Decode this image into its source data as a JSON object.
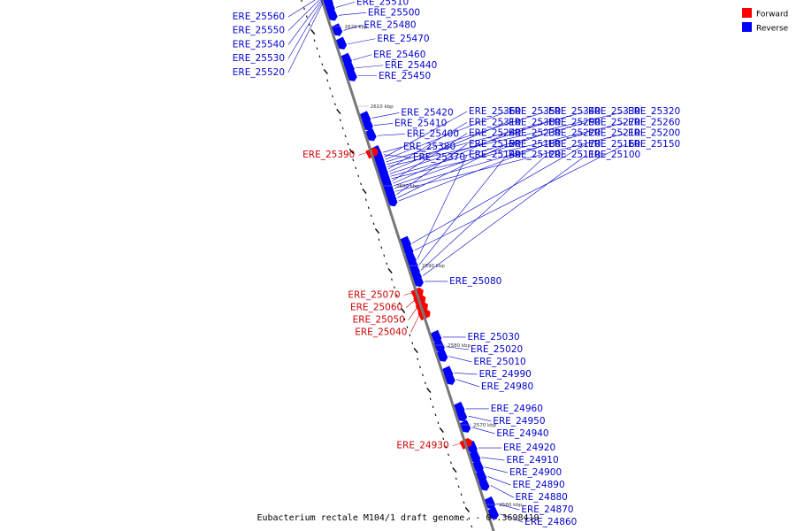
{
  "caption": "Eubacterium rectale M104/1 draft genome. - 0..3698419",
  "colors": {
    "forward": "#ff0000",
    "forward_label": "#cc0000",
    "reverse": "#0000ff",
    "reverse_label": "#0000cc",
    "backbone": "#777777",
    "background": "#ffffff"
  },
  "legend": [
    {
      "label": "Forward",
      "color": "#ff0000"
    },
    {
      "label": "Reverse",
      "color": "#0000ff"
    }
  ],
  "backbone_kbp_range": [
    2556,
    2624
  ],
  "kbp_markers": [
    {
      "label": "2620 kbp",
      "kbp": 2620
    },
    {
      "label": "2610 kbp",
      "kbp": 2610
    },
    {
      "label": "2600 kbp",
      "kbp": 2600
    },
    {
      "label": "2590 kbp",
      "kbp": 2590
    },
    {
      "label": "2580 kbp",
      "kbp": 2580
    },
    {
      "label": "2570 kbp",
      "kbp": 2570
    },
    {
      "label": "2560 kbp",
      "kbp": 2560
    }
  ],
  "genes": [
    {
      "name": "ERE_25560",
      "strand": "reverse",
      "kbp": 2623.6,
      "side": "left"
    },
    {
      "name": "ERE_25550",
      "strand": "reverse",
      "kbp": 2623.4,
      "side": "left"
    },
    {
      "name": "ERE_25540",
      "strand": "reverse",
      "kbp": 2623.2,
      "side": "left"
    },
    {
      "name": "ERE_25530",
      "strand": "reverse",
      "kbp": 2623.0,
      "side": "left"
    },
    {
      "name": "ERE_25520",
      "strand": "reverse",
      "kbp": 2622.8,
      "side": "left"
    },
    {
      "name": "ERE_25510",
      "strand": "reverse",
      "kbp": 2622.2,
      "side": "right"
    },
    {
      "name": "ERE_25500",
      "strand": "reverse",
      "kbp": 2621.2,
      "side": "right"
    },
    {
      "name": "ERE_25480",
      "strand": "reverse",
      "kbp": 2619.3,
      "side": "right"
    },
    {
      "name": "ERE_25470",
      "strand": "reverse",
      "kbp": 2617.6,
      "side": "right"
    },
    {
      "name": "ERE_25460",
      "strand": "reverse",
      "kbp": 2615.6,
      "side": "right"
    },
    {
      "name": "ERE_25440",
      "strand": "reverse",
      "kbp": 2614.6,
      "side": "right"
    },
    {
      "name": "ERE_25450",
      "strand": "reverse",
      "kbp": 2613.6,
      "side": "right"
    },
    {
      "name": "ERE_25420",
      "strand": "reverse",
      "kbp": 2608.3,
      "side": "right"
    },
    {
      "name": "ERE_25410",
      "strand": "reverse",
      "kbp": 2607.4,
      "side": "right"
    },
    {
      "name": "ERE_25400",
      "strand": "reverse",
      "kbp": 2606.1,
      "side": "right"
    },
    {
      "name": "ERE_25390",
      "strand": "forward",
      "kbp": 2604.4,
      "side": "left"
    },
    {
      "name": "ERE_25380",
      "strand": "reverse",
      "kbp": 2604.0,
      "side": "right"
    },
    {
      "name": "ERE_25370",
      "strand": "reverse",
      "kbp": 2603.7,
      "side": "right"
    },
    {
      "name": "ERE_25360",
      "strand": "reverse",
      "kbp": 2603.4,
      "side": "right"
    },
    {
      "name": "ERE_25350",
      "strand": "reverse",
      "kbp": 2603.1,
      "side": "right"
    },
    {
      "name": "ERE_25340",
      "strand": "reverse",
      "kbp": 2602.8,
      "side": "right"
    },
    {
      "name": "ERE_25330",
      "strand": "reverse",
      "kbp": 2602.5,
      "side": "right"
    },
    {
      "name": "ERE_25320",
      "strand": "reverse",
      "kbp": 2602.2,
      "side": "right"
    },
    {
      "name": "ERE_25310",
      "strand": "reverse",
      "kbp": 2601.9,
      "side": "right"
    },
    {
      "name": "ERE_25300",
      "strand": "reverse",
      "kbp": 2601.6,
      "side": "right"
    },
    {
      "name": "ERE_25290",
      "strand": "reverse",
      "kbp": 2601.3,
      "side": "right"
    },
    {
      "name": "ERE_25270",
      "strand": "reverse",
      "kbp": 2601.0,
      "side": "right"
    },
    {
      "name": "ERE_25260",
      "strand": "reverse",
      "kbp": 2600.7,
      "side": "right"
    },
    {
      "name": "ERE_25240",
      "strand": "reverse",
      "kbp": 2600.4,
      "side": "right"
    },
    {
      "name": "ERE_25230",
      "strand": "reverse",
      "kbp": 2600.1,
      "side": "right"
    },
    {
      "name": "ERE_25220",
      "strand": "reverse",
      "kbp": 2599.8,
      "side": "right"
    },
    {
      "name": "ERE_25210",
      "strand": "reverse",
      "kbp": 2599.5,
      "side": "right"
    },
    {
      "name": "ERE_25200",
      "strand": "reverse",
      "kbp": 2599.1,
      "side": "right"
    },
    {
      "name": "ERE_25190",
      "strand": "reverse",
      "kbp": 2598.7,
      "side": "right"
    },
    {
      "name": "ERE_25180",
      "strand": "reverse",
      "kbp": 2598.3,
      "side": "right"
    },
    {
      "name": "ERE_25170",
      "strand": "reverse",
      "kbp": 2597.9,
      "side": "right"
    },
    {
      "name": "ERE_25160",
      "strand": "reverse",
      "kbp": 2592.6,
      "side": "right"
    },
    {
      "name": "ERE_25150",
      "strand": "reverse",
      "kbp": 2591.7,
      "side": "right"
    },
    {
      "name": "ERE_25140",
      "strand": "reverse",
      "kbp": 2590.6,
      "side": "right"
    },
    {
      "name": "ERE_25120",
      "strand": "reverse",
      "kbp": 2589.9,
      "side": "right"
    },
    {
      "name": "ERE_25110",
      "strand": "reverse",
      "kbp": 2589.2,
      "side": "right"
    },
    {
      "name": "ERE_25100",
      "strand": "reverse",
      "kbp": 2588.5,
      "side": "right"
    },
    {
      "name": "ERE_25080",
      "strand": "reverse",
      "kbp": 2587.8,
      "side": "right"
    },
    {
      "name": "ERE_25070",
      "strand": "forward",
      "kbp": 2586.8,
      "side": "left"
    },
    {
      "name": "ERE_25060",
      "strand": "forward",
      "kbp": 2585.9,
      "side": "left"
    },
    {
      "name": "ERE_25050",
      "strand": "forward",
      "kbp": 2585.0,
      "side": "left"
    },
    {
      "name": "ERE_25040",
      "strand": "forward",
      "kbp": 2584.1,
      "side": "left"
    },
    {
      "name": "ERE_25030",
      "strand": "reverse",
      "kbp": 2580.8,
      "side": "right"
    },
    {
      "name": "ERE_25020",
      "strand": "reverse",
      "kbp": 2579.6,
      "side": "right"
    },
    {
      "name": "ERE_25010",
      "strand": "reverse",
      "kbp": 2578.4,
      "side": "right"
    },
    {
      "name": "ERE_24990",
      "strand": "reverse",
      "kbp": 2576.3,
      "side": "right"
    },
    {
      "name": "ERE_24980",
      "strand": "reverse",
      "kbp": 2575.5,
      "side": "right"
    },
    {
      "name": "ERE_24960",
      "strand": "reverse",
      "kbp": 2571.8,
      "side": "right"
    },
    {
      "name": "ERE_24950",
      "strand": "reverse",
      "kbp": 2570.9,
      "side": "right"
    },
    {
      "name": "ERE_24940",
      "strand": "reverse",
      "kbp": 2569.5,
      "side": "right"
    },
    {
      "name": "ERE_24930",
      "strand": "forward",
      "kbp": 2567.9,
      "side": "left"
    },
    {
      "name": "ERE_24920",
      "strand": "reverse",
      "kbp": 2566.9,
      "side": "right"
    },
    {
      "name": "ERE_24910",
      "strand": "reverse",
      "kbp": 2565.7,
      "side": "right"
    },
    {
      "name": "ERE_24900",
      "strand": "reverse",
      "kbp": 2564.5,
      "side": "right"
    },
    {
      "name": "ERE_24890",
      "strand": "reverse",
      "kbp": 2563.3,
      "side": "right"
    },
    {
      "name": "ERE_24880",
      "strand": "reverse",
      "kbp": 2562.2,
      "side": "right"
    },
    {
      "name": "ERE_24870",
      "strand": "reverse",
      "kbp": 2559.9,
      "side": "right"
    },
    {
      "name": "ERE_24860",
      "strand": "reverse",
      "kbp": 2558.6,
      "side": "right"
    }
  ]
}
